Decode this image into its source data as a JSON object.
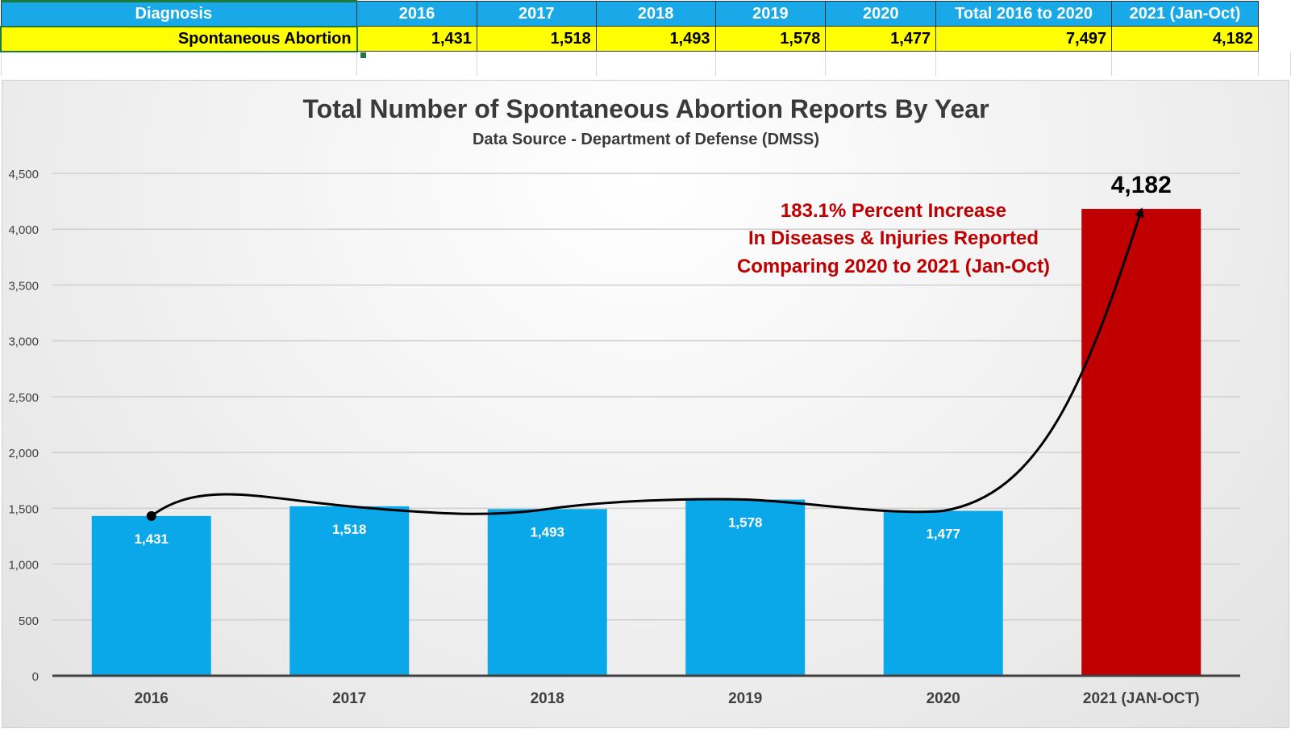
{
  "sheet": {
    "headers": [
      "Diagnosis",
      "2016",
      "2017",
      "2018",
      "2019",
      "2020",
      "Total 2016 to 2020",
      "2021 (Jan-Oct)"
    ],
    "row": [
      "Spontaneous Abortion",
      "1,431",
      "1,518",
      "1,493",
      "1,578",
      "1,477",
      "7,497",
      "4,182"
    ]
  },
  "chart_data": {
    "type": "bar",
    "title": "Total Number of Spontaneous Abortion Reports By Year",
    "subtitle": "Data Source - Department of Defense (DMSS)",
    "categories": [
      "2016",
      "2017",
      "2018",
      "2019",
      "2020",
      "2021 (JAN-OCT)"
    ],
    "values": [
      1431,
      1518,
      1493,
      1578,
      1477,
      4182
    ],
    "value_labels": [
      "1,431",
      "1,518",
      "1,493",
      "1,578",
      "1,477",
      "4,182"
    ],
    "colors": [
      "#0aa8e8",
      "#0aa8e8",
      "#0aa8e8",
      "#0aa8e8",
      "#0aa8e8",
      "#c00000"
    ],
    "ylim": [
      0,
      4500
    ],
    "yticks": [
      0,
      500,
      1000,
      1500,
      2000,
      2500,
      3000,
      3500,
      4000,
      4500
    ],
    "ytick_labels": [
      "0",
      "500",
      "1,000",
      "1,500",
      "2,000",
      "2,500",
      "3,000",
      "3,500",
      "4,000",
      "4,500"
    ],
    "grid": true,
    "annotation": [
      "183.1% Percent Increase",
      "In Diseases & Injuries Reported",
      "Comparing 2020 to 2021 (Jan-Oct)"
    ],
    "annotation_color": "#c00000",
    "trend_line": "black curved arrow through bar tops"
  }
}
